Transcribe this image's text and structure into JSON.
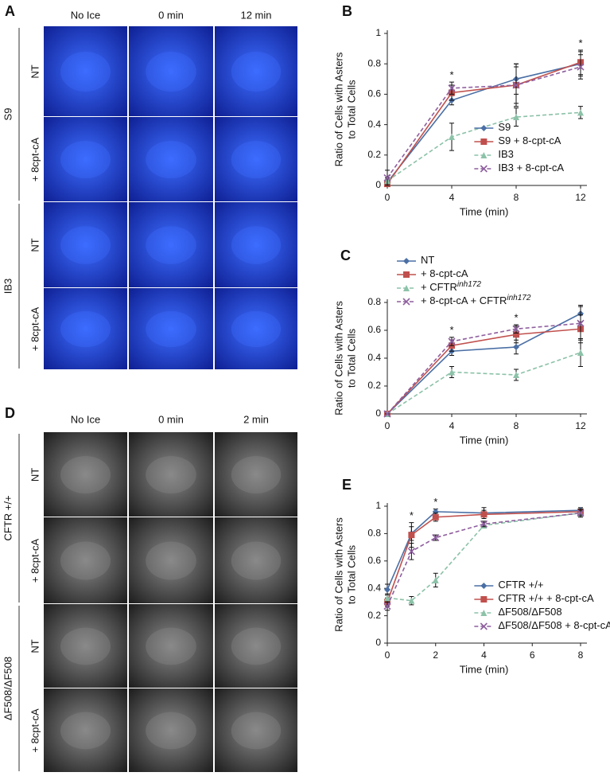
{
  "figure_panels": [
    {
      "label": "A",
      "color": [
        "#0b1a8c",
        "#3d6dff"
      ],
      "columns": [
        "No Ice",
        "0 min",
        "12 min"
      ],
      "groups": [
        {
          "name": "S9",
          "rows": [
            "NT",
            "+ 8cpt-cA"
          ]
        },
        {
          "name": "IB3",
          "rows": [
            "NT",
            "+ 8cpt-cA"
          ]
        }
      ]
    },
    {
      "label": "D",
      "color": [
        "#151515",
        "#8a8a8a"
      ],
      "columns": [
        "No Ice",
        "0 min",
        "2 min"
      ],
      "groups": [
        {
          "name": "CFTR +/+",
          "rows": [
            "NT",
            "+ 8cpt-cA"
          ]
        },
        {
          "name": "ΔF508/ΔF508",
          "rows": [
            "NT",
            "+ 8cpt-cA"
          ]
        }
      ]
    }
  ],
  "chart_data": [
    {
      "type": "line",
      "panel_label": "B",
      "xlabel": "Time (min)",
      "ylabel": [
        "Ratio of Cells with Asters",
        "to Total Cells"
      ],
      "x": [
        0,
        4,
        8,
        12
      ],
      "xlim": [
        0,
        12
      ],
      "xticks": [
        0,
        4,
        8,
        12
      ],
      "ylim": [
        0,
        1
      ],
      "yticks": [
        0,
        0.2,
        0.4,
        0.6,
        0.8,
        1
      ],
      "legend": "lower right",
      "annotations": [
        {
          "x": 4,
          "label": "*"
        },
        {
          "x": 12,
          "label": "*"
        }
      ],
      "series": [
        {
          "name": "S9",
          "color": "#4a6fa5",
          "marker": "diamond",
          "dashed": false,
          "values": [
            0.02,
            0.56,
            0.7,
            0.8
          ],
          "errors": [
            0.01,
            0.03,
            0.1,
            0.08
          ]
        },
        {
          "name": "S9 + 8-cpt-cA",
          "color": "#c0504d",
          "marker": "square",
          "dashed": false,
          "values": [
            0.01,
            0.61,
            0.66,
            0.81
          ],
          "errors": [
            0.01,
            0.05,
            0.14,
            0.08
          ]
        },
        {
          "name": "IB3",
          "color": "#8cc2a8",
          "marker": "triangle",
          "dashed": true,
          "values": [
            0.03,
            0.32,
            0.45,
            0.48
          ],
          "errors": [
            0.02,
            0.09,
            0.06,
            0.04
          ]
        },
        {
          "name": "IB3 + 8-cpt-cA",
          "color": "#8e5e9e",
          "marker": "x",
          "dashed": true,
          "values": [
            0.05,
            0.64,
            0.66,
            0.78
          ],
          "errors": [
            0.05,
            0.04,
            0.12,
            0.08
          ]
        }
      ]
    },
    {
      "type": "line",
      "panel_label": "C",
      "xlabel": "Time (min)",
      "ylabel": [
        "Ratio of Cells with Asters",
        "to Total Cells"
      ],
      "x": [
        0,
        4,
        8,
        12
      ],
      "xlim": [
        0,
        12
      ],
      "xticks": [
        0,
        4,
        8,
        12
      ],
      "ylim": [
        0,
        0.8
      ],
      "yticks": [
        0,
        0.2,
        0.4,
        0.6,
        0.8
      ],
      "legend": "upper left",
      "annotations": [
        {
          "x": 4,
          "label": "*"
        },
        {
          "x": 8,
          "label": "*"
        }
      ],
      "series": [
        {
          "name": "NT",
          "color": "#4a6fa5",
          "marker": "diamond",
          "dashed": false,
          "values": [
            0,
            0.45,
            0.48,
            0.72
          ],
          "errors": [
            0,
            0.03,
            0.05,
            0.06
          ]
        },
        {
          "name": "+ 8-cpt-cA",
          "color": "#c0504d",
          "marker": "square",
          "dashed": false,
          "values": [
            0,
            0.49,
            0.57,
            0.61
          ],
          "errors": [
            0,
            0.04,
            0.06,
            0.1
          ]
        },
        {
          "name": "+ CFTR",
          "name_superscript": "inh172",
          "color": "#8cc2a8",
          "marker": "triangle",
          "dashed": true,
          "values": [
            0,
            0.3,
            0.28,
            0.44
          ],
          "errors": [
            0,
            0.04,
            0.04,
            0.1
          ]
        },
        {
          "name": "+ 8-cpt-cA + CFTR",
          "name_superscript": "inh172",
          "color": "#8e5e9e",
          "marker": "x",
          "dashed": true,
          "values": [
            0,
            0.52,
            0.61,
            0.65
          ],
          "errors": [
            0,
            0.03,
            0.03,
            0.12
          ]
        }
      ]
    },
    {
      "type": "line",
      "panel_label": "E",
      "xlabel": "Time (min)",
      "ylabel": [
        "Ratio of Cells with Asters",
        "to Total Cells"
      ],
      "x": [
        0,
        1,
        2,
        4,
        8
      ],
      "xlim": [
        0,
        8
      ],
      "xticks": [
        0,
        2,
        4,
        6,
        8
      ],
      "ylim": [
        0,
        1
      ],
      "yticks": [
        0,
        0.2,
        0.4,
        0.6,
        0.8,
        1
      ],
      "legend": "lower right",
      "annotations": [
        {
          "x": 1,
          "label": "*"
        },
        {
          "x": 2,
          "label": "*"
        }
      ],
      "series": [
        {
          "name": "CFTR +/+",
          "color": "#4a6fa5",
          "marker": "diamond",
          "dashed": false,
          "values": [
            0.39,
            0.8,
            0.96,
            0.95,
            0.97
          ],
          "errors": [
            0.04,
            0.05,
            0.02,
            0.04,
            0.02
          ]
        },
        {
          "name": "CFTR +/+ + 8-cpt-cA",
          "color": "#c0504d",
          "marker": "square",
          "dashed": false,
          "values": [
            0.3,
            0.79,
            0.92,
            0.94,
            0.96
          ],
          "errors": [
            0.03,
            0.09,
            0.03,
            0.03,
            0.02
          ]
        },
        {
          "name": "ΔF508/ΔF508",
          "color": "#8cc2a8",
          "marker": "triangle",
          "dashed": true,
          "values": [
            0.33,
            0.31,
            0.46,
            0.86,
            0.95
          ],
          "errors": [
            0.03,
            0.03,
            0.05,
            0.02,
            0.03
          ]
        },
        {
          "name": "ΔF508/ΔF508 + 8-cpt-cA",
          "color": "#8e5e9e",
          "marker": "x",
          "dashed": true,
          "values": [
            0.27,
            0.67,
            0.77,
            0.87,
            0.95
          ],
          "errors": [
            0.03,
            0.06,
            0.02,
            0.02,
            0.02
          ]
        }
      ]
    }
  ]
}
